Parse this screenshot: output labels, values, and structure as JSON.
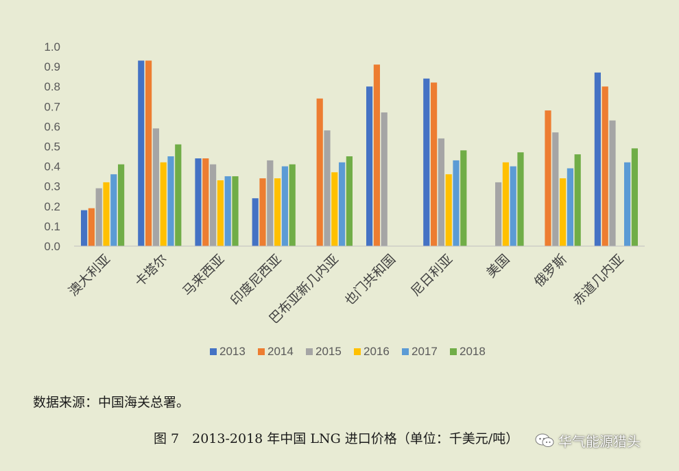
{
  "chart_data": {
    "type": "bar",
    "categories": [
      "澳大利亚",
      "卡塔尔",
      "马来西亚",
      "印度尼西亚",
      "巴布亚新几内亚",
      "也门共和国",
      "尼日利亚",
      "美国",
      "俄罗斯",
      "赤道几内亚"
    ],
    "series": [
      {
        "name": "2013",
        "color": "#4472c4",
        "values": [
          0.18,
          0.93,
          0.44,
          0.24,
          null,
          0.8,
          0.84,
          null,
          null,
          0.87
        ]
      },
      {
        "name": "2014",
        "color": "#ed7d31",
        "values": [
          0.19,
          0.93,
          0.44,
          0.34,
          0.74,
          0.91,
          0.82,
          null,
          0.68,
          0.8
        ]
      },
      {
        "name": "2015",
        "color": "#a5a5a5",
        "values": [
          0.29,
          0.59,
          0.41,
          0.43,
          0.58,
          0.67,
          0.54,
          0.32,
          0.57,
          0.63
        ]
      },
      {
        "name": "2016",
        "color": "#ffc000",
        "values": [
          0.32,
          0.42,
          0.33,
          0.34,
          0.37,
          null,
          0.36,
          0.42,
          0.34,
          null
        ]
      },
      {
        "name": "2017",
        "color": "#5b9bd5",
        "values": [
          0.36,
          0.45,
          0.35,
          0.4,
          0.42,
          null,
          0.43,
          0.4,
          0.39,
          0.42
        ]
      },
      {
        "name": "2018",
        "color": "#70ad47",
        "values": [
          0.41,
          0.51,
          0.35,
          0.41,
          0.45,
          null,
          0.48,
          0.47,
          0.46,
          0.49
        ]
      }
    ],
    "ylim": [
      0,
      1.0
    ],
    "yticks": [
      "0.0",
      "0.1",
      "0.2",
      "0.3",
      "0.4",
      "0.5",
      "0.6",
      "0.7",
      "0.8",
      "0.9",
      "1.0"
    ],
    "grid": false,
    "legend_position": "bottom"
  },
  "source_note": "数据来源：中国海关总署。",
  "caption": "图 7　2013-2018 年中国 LNG 进口价格（单位：千美元/吨）",
  "watermark": "华气能源猎头"
}
